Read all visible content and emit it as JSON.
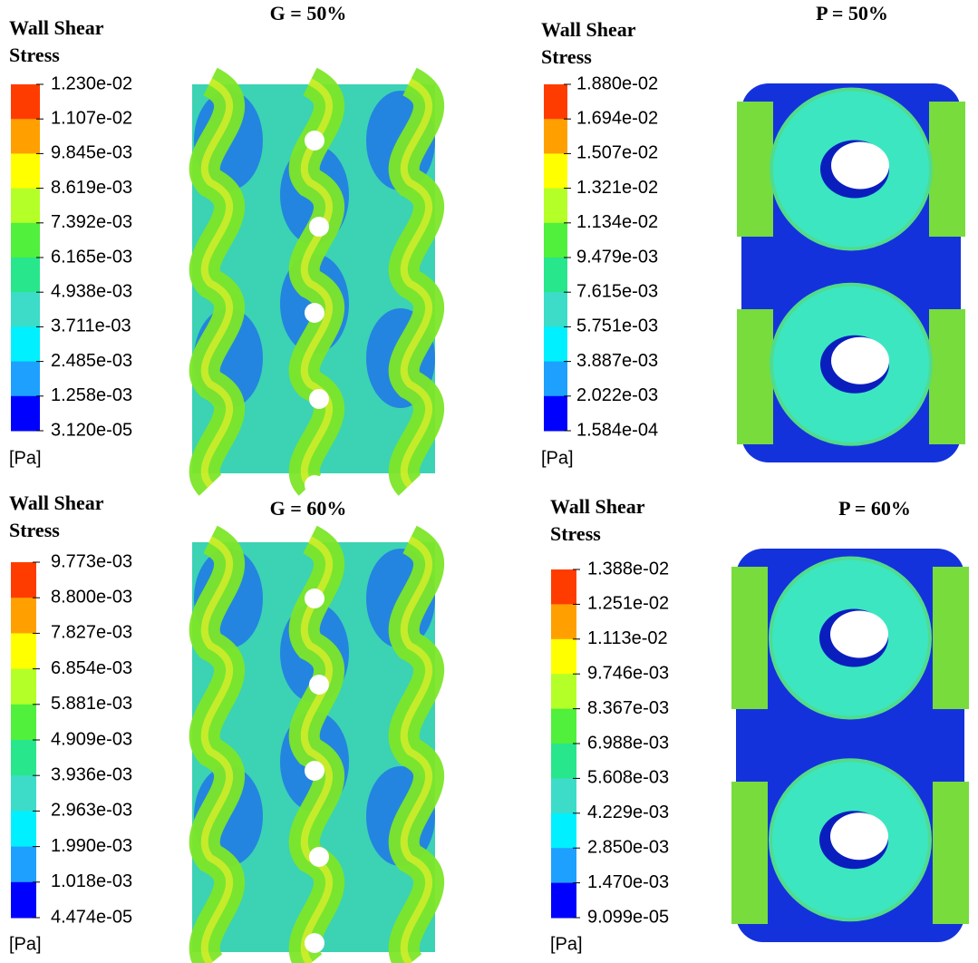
{
  "panels": [
    {
      "title": "G = 50%",
      "legend_title": [
        "Wall Shear",
        "Stress"
      ],
      "labels": [
        "1.230e-02",
        "1.107e-02",
        "9.845e-03",
        "8.619e-03",
        "7.392e-03",
        "6.165e-03",
        "4.938e-03",
        "3.711e-03",
        "2.485e-03",
        "1.258e-03",
        "3.120e-05"
      ],
      "unit": "[Pa]"
    },
    {
      "title": "P = 50%",
      "legend_title": [
        "Wall Shear",
        "Stress"
      ],
      "labels": [
        "1.880e-02",
        "1.694e-02",
        "1.507e-02",
        "1.321e-02",
        "1.134e-02",
        "9.479e-03",
        "7.615e-03",
        "5.751e-03",
        "3.887e-03",
        "2.022e-03",
        "1.584e-04"
      ],
      "unit": "[Pa]"
    },
    {
      "title": "G = 60%",
      "legend_title": [
        "Wall Shear",
        "Stress"
      ],
      "labels": [
        "9.773e-03",
        "8.800e-03",
        "7.827e-03",
        "6.854e-03",
        "5.881e-03",
        "4.909e-03",
        "3.936e-03",
        "2.963e-03",
        "1.990e-03",
        "1.018e-03",
        "4.474e-05"
      ],
      "unit": "[Pa]"
    },
    {
      "title": "P = 60%",
      "legend_title": [
        "Wall Shear",
        "Stress"
      ],
      "labels": [
        "1.388e-02",
        "1.251e-02",
        "1.113e-02",
        "9.746e-03",
        "8.367e-03",
        "6.988e-03",
        "5.608e-03",
        "4.229e-03",
        "2.850e-03",
        "1.470e-03",
        "9.099e-05"
      ],
      "unit": "[Pa]"
    }
  ]
}
